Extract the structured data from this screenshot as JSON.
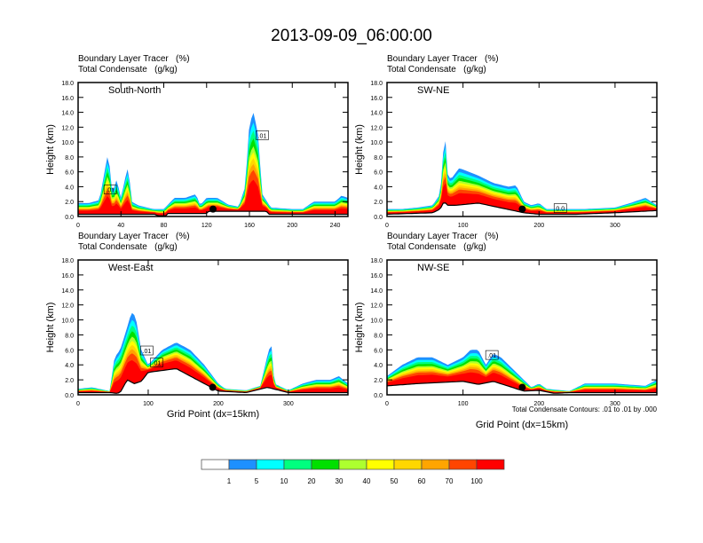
{
  "title": "2013-09-09_06:00:00",
  "chart_data": [
    {
      "type": "area",
      "panel": "South-North",
      "subtitle_lines": [
        "Boundary Layer Tracer   (%)",
        "Total Condensate   (g/kg)"
      ],
      "ylabel": "Height (km)",
      "xlabel": "",
      "xlim": [
        0,
        252
      ],
      "ylim": [
        0,
        18
      ],
      "xticks": [
        0,
        40,
        80,
        120,
        160,
        200,
        240
      ],
      "yticks": [
        0.0,
        2.0,
        4.0,
        6.0,
        8.0,
        10.0,
        12.0,
        14.0,
        16.0,
        18.0
      ],
      "marker": {
        "x": 126,
        "y": 1.0
      },
      "contour_labels": [
        {
          "x": 30,
          "y": 3.5,
          "text": ".01"
        },
        {
          "x": 172,
          "y": 10.8,
          "text": ".01"
        }
      ],
      "tracer_top_km": {
        "x": [
          0,
          10,
          20,
          24,
          28,
          30,
          32,
          36,
          40,
          46,
          48,
          50,
          56,
          70,
          80,
          90,
          100,
          110,
          114,
          120,
          130,
          140,
          150,
          156,
          160,
          164,
          168,
          172,
          180,
          200,
          210,
          220,
          230,
          240,
          246,
          252
        ],
        "y": [
          1.8,
          1.8,
          2.2,
          5.5,
          8.5,
          6.0,
          3.0,
          5.0,
          2.5,
          6.5,
          5.0,
          2.0,
          1.5,
          1.0,
          1.0,
          2.5,
          2.5,
          3.0,
          1.5,
          2.5,
          2.5,
          1.6,
          1.3,
          4.0,
          12.5,
          14.0,
          11.0,
          3.0,
          1.2,
          1.0,
          1.0,
          2.0,
          2.0,
          2.0,
          2.8,
          2.5
        ]
      },
      "terrain_km": {
        "x": [
          0,
          72,
          74,
          82,
          84,
          120,
          122,
          176,
          178,
          252
        ],
        "y": [
          0.3,
          0.3,
          0.1,
          0.1,
          0.4,
          0.4,
          0.7,
          0.7,
          0.3,
          0.3
        ]
      }
    },
    {
      "type": "area",
      "panel": "SW-NE",
      "subtitle_lines": [
        "Boundary Layer Tracer   (%)",
        "Total Condensate   (g/kg)"
      ],
      "ylabel": "Height (km)",
      "xlabel": "",
      "xlim": [
        0,
        355
      ],
      "ylim": [
        0,
        18
      ],
      "xticks": [
        0,
        100,
        200,
        300
      ],
      "yticks": [
        0.0,
        2.0,
        4.0,
        6.0,
        8.0,
        10.0,
        12.0,
        14.0,
        16.0,
        18.0
      ],
      "marker": {
        "x": 178,
        "y": 1.0
      },
      "contour_labels": [
        {
          "x": 228,
          "y": 1.0,
          "text": "0.0"
        }
      ],
      "tracer_top_km": {
        "x": [
          0,
          20,
          40,
          60,
          70,
          76,
          80,
          84,
          95,
          120,
          140,
          160,
          170,
          180,
          190,
          200,
          210,
          240,
          260,
          300,
          320,
          340,
          355
        ],
        "y": [
          1.0,
          1.0,
          1.2,
          1.5,
          3.0,
          11.5,
          5.5,
          5.0,
          6.5,
          5.5,
          4.5,
          4.0,
          4.2,
          2.0,
          1.5,
          1.8,
          1.0,
          1.0,
          1.0,
          1.2,
          1.8,
          2.5,
          1.5
        ]
      },
      "terrain_km": {
        "x": [
          0,
          60,
          70,
          75,
          80,
          90,
          120,
          180,
          200,
          250,
          300,
          355
        ],
        "y": [
          0.3,
          0.5,
          1.0,
          2.0,
          1.5,
          1.5,
          1.8,
          0.5,
          0.3,
          0.3,
          0.5,
          0.8
        ]
      }
    },
    {
      "type": "area",
      "panel": "West-East",
      "subtitle_lines": [
        "Boundary Layer Tracer   (%)",
        "Total Condensate   (g/kg)"
      ],
      "ylabel": "Height (km)",
      "xlabel": "Grid Point (dx=15km)",
      "xlim": [
        0,
        385
      ],
      "ylim": [
        0,
        18
      ],
      "xticks": [
        0,
        100,
        200,
        300
      ],
      "yticks": [
        0.0,
        2.0,
        4.0,
        6.0,
        8.0,
        10.0,
        12.0,
        14.0,
        16.0,
        18.0
      ],
      "marker": {
        "x": 192,
        "y": 1.0
      },
      "contour_labels": [
        {
          "x": 98,
          "y": 5.8,
          "text": ".01"
        },
        {
          "x": 112,
          "y": 4.2,
          "text": ".01"
        }
      ],
      "tracer_top_km": {
        "x": [
          0,
          20,
          45,
          52,
          60,
          70,
          76,
          82,
          90,
          100,
          110,
          120,
          140,
          160,
          180,
          200,
          210,
          240,
          260,
          272,
          276,
          280,
          300,
          320,
          340,
          360,
          372,
          385
        ],
        "y": [
          0.8,
          1.0,
          0.5,
          5.0,
          6.0,
          9.0,
          11.0,
          10.5,
          6.0,
          4.0,
          5.0,
          6.0,
          7.0,
          6.0,
          4.0,
          1.5,
          0.8,
          0.6,
          1.2,
          6.0,
          6.5,
          1.5,
          0.6,
          1.5,
          2.0,
          2.0,
          2.5,
          1.5
        ]
      },
      "terrain_km": {
        "x": [
          0,
          45,
          55,
          60,
          70,
          80,
          90,
          100,
          140,
          180,
          200,
          240,
          270,
          300,
          385
        ],
        "y": [
          0.3,
          0.3,
          0.2,
          0.3,
          2.0,
          1.5,
          1.8,
          3.0,
          3.5,
          1.5,
          0.5,
          0.3,
          1.0,
          0.3,
          0.3
        ]
      }
    },
    {
      "type": "area",
      "panel": "NW-SE",
      "subtitle_lines": [
        "Boundary Layer Tracer   (%)",
        "Total Condensate   (g/kg)"
      ],
      "ylabel": "Height (km)",
      "xlabel": "Grid Point (dx=15km)",
      "xlim": [
        0,
        355
      ],
      "ylim": [
        0,
        18
      ],
      "xticks": [
        0,
        100,
        200,
        300
      ],
      "yticks": [
        0.0,
        2.0,
        4.0,
        6.0,
        8.0,
        10.0,
        12.0,
        14.0,
        16.0,
        18.0
      ],
      "marker": {
        "x": 178,
        "y": 1.0
      },
      "contour_labels": [
        {
          "x": 138,
          "y": 5.2,
          "text": ".01"
        }
      ],
      "footnote": "Total Condensate Contours: .01 to .01 by .000",
      "tracer_top_km": {
        "x": [
          0,
          20,
          40,
          60,
          80,
          100,
          110,
          120,
          130,
          140,
          150,
          170,
          180,
          190,
          200,
          210,
          230,
          240,
          260,
          300,
          340,
          355
        ],
        "y": [
          2.5,
          4.0,
          5.0,
          5.0,
          4.0,
          5.0,
          6.0,
          6.0,
          4.0,
          5.5,
          5.0,
          3.0,
          2.0,
          1.0,
          1.5,
          0.8,
          0.6,
          0.5,
          1.5,
          1.5,
          1.2,
          2.0
        ]
      },
      "terrain_km": {
        "x": [
          0,
          40,
          100,
          120,
          140,
          180,
          200,
          220,
          240,
          355
        ],
        "y": [
          1.2,
          1.5,
          1.8,
          1.4,
          1.8,
          0.5,
          0.6,
          0.2,
          0.3,
          0.3
        ]
      }
    }
  ],
  "colorbar": {
    "labels": [
      "1",
      "5",
      "10",
      "20",
      "30",
      "40",
      "50",
      "60",
      "70",
      "100"
    ],
    "colors": [
      "#ffffff",
      "#1e90ff",
      "#00ffff",
      "#00ff7f",
      "#00e000",
      "#adff2f",
      "#ffff00",
      "#ffd700",
      "#ffa500",
      "#ff4500",
      "#ff0000"
    ]
  }
}
